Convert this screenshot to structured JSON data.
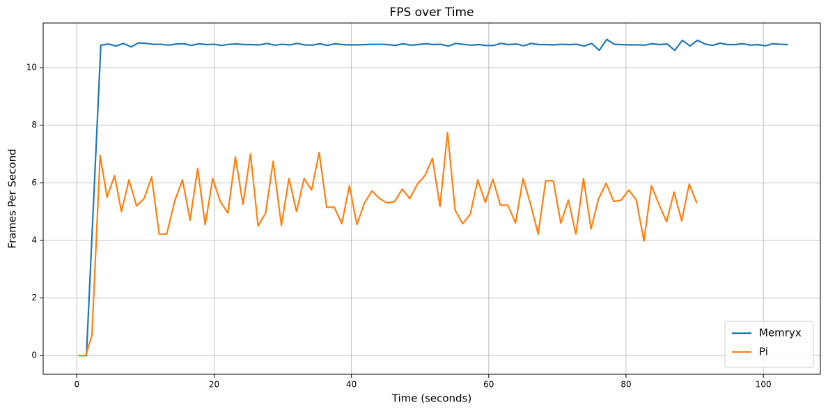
{
  "chart_data": {
    "type": "line",
    "title": "FPS over Time",
    "x_label": "Time (seconds)",
    "y_label": "Frames Per Second",
    "xlim": [
      -4.9,
      108.3
    ],
    "ylim": [
      -0.65,
      11.55
    ],
    "xticks": [
      0,
      20,
      40,
      60,
      80,
      100
    ],
    "yticks": [
      0,
      2,
      4,
      6,
      8,
      10
    ],
    "grid": true,
    "legend": "lower right",
    "series": [
      {
        "name": "Memryx",
        "color": "#1f77b4",
        "x": [
          0.4,
          1.4,
          3.5,
          4.6,
          5.7,
          6.8,
          7.9,
          9.0,
          10.1,
          11.2,
          12.3,
          13.4,
          14.5,
          15.6,
          16.7,
          17.8,
          18.9,
          20.0,
          21.1,
          22.2,
          23.3,
          24.4,
          25.5,
          26.6,
          27.7,
          28.8,
          29.9,
          31.0,
          32.1,
          33.2,
          34.3,
          35.4,
          36.5,
          37.6,
          38.7,
          39.8,
          40.9,
          42.0,
          43.1,
          44.2,
          45.3,
          46.4,
          47.5,
          48.6,
          49.7,
          50.8,
          51.9,
          53.0,
          54.1,
          55.2,
          56.3,
          57.4,
          58.5,
          59.6,
          60.7,
          61.8,
          62.9,
          64.0,
          65.1,
          66.2,
          67.3,
          68.4,
          69.5,
          70.6,
          71.7,
          72.8,
          73.9,
          75.0,
          76.1,
          77.2,
          78.3,
          79.4,
          80.5,
          81.6,
          82.7,
          83.8,
          84.9,
          86.0,
          87.1,
          88.2,
          89.3,
          90.4,
          91.5,
          92.6,
          93.7,
          94.8,
          95.9,
          97.0,
          98.1,
          99.2,
          100.3,
          101.4,
          102.5,
          103.6
        ],
        "values": [
          0,
          0,
          10.78,
          10.82,
          10.75,
          10.84,
          10.72,
          10.86,
          10.84,
          10.81,
          10.81,
          10.78,
          10.82,
          10.83,
          10.77,
          10.83,
          10.8,
          10.81,
          10.77,
          10.81,
          10.82,
          10.8,
          10.8,
          10.79,
          10.84,
          10.78,
          10.81,
          10.79,
          10.84,
          10.79,
          10.78,
          10.83,
          10.77,
          10.83,
          10.8,
          10.79,
          10.79,
          10.8,
          10.81,
          10.81,
          10.8,
          10.77,
          10.83,
          10.78,
          10.8,
          10.83,
          10.8,
          10.81,
          10.75,
          10.84,
          10.81,
          10.78,
          10.8,
          10.77,
          10.77,
          10.84,
          10.8,
          10.82,
          10.76,
          10.84,
          10.8,
          10.8,
          10.79,
          10.81,
          10.8,
          10.81,
          10.75,
          10.84,
          10.6,
          10.98,
          10.81,
          10.8,
          10.79,
          10.79,
          10.78,
          10.83,
          10.8,
          10.82,
          10.6,
          10.95,
          10.75,
          10.95,
          10.82,
          10.77,
          10.85,
          10.8,
          10.8,
          10.83,
          10.78,
          10.8,
          10.76,
          10.83,
          10.81,
          10.8
        ]
      },
      {
        "name": "Pi",
        "color": "#ff7f0e",
        "x": [
          0.2,
          1.3,
          2.2,
          3.4,
          4.4,
          5.5,
          6.5,
          7.6,
          8.7,
          9.8,
          10.9,
          12.0,
          13.1,
          14.3,
          15.4,
          16.5,
          17.6,
          18.7,
          19.8,
          20.9,
          22.0,
          23.1,
          24.2,
          25.3,
          26.4,
          27.5,
          28.6,
          29.8,
          30.9,
          32.0,
          33.1,
          34.2,
          35.3,
          36.4,
          37.5,
          38.6,
          39.7,
          40.8,
          41.9,
          43.0,
          44.1,
          45.2,
          46.3,
          47.4,
          48.5,
          49.6,
          50.7,
          51.8,
          52.9,
          54.0,
          55.1,
          56.2,
          57.3,
          58.4,
          59.5,
          60.6,
          61.7,
          62.8,
          63.9,
          65.0,
          66.1,
          67.2,
          68.3,
          69.4,
          70.5,
          71.6,
          72.7,
          73.8,
          74.9,
          76.0,
          77.1,
          78.2,
          79.3,
          80.4,
          81.5,
          82.6,
          83.7,
          84.8,
          85.9,
          87.0,
          88.1,
          89.2,
          90.3
        ],
        "values": [
          0,
          0,
          0.7,
          6.95,
          5.5,
          6.25,
          5.0,
          6.1,
          5.2,
          5.45,
          6.2,
          4.22,
          4.22,
          5.4,
          6.1,
          4.7,
          6.5,
          4.55,
          6.15,
          5.35,
          4.95,
          6.9,
          5.25,
          7.0,
          4.5,
          4.95,
          6.75,
          4.52,
          6.15,
          5.0,
          6.15,
          5.75,
          7.05,
          5.15,
          5.15,
          4.58,
          5.9,
          4.55,
          5.3,
          5.72,
          5.45,
          5.3,
          5.35,
          5.78,
          5.45,
          5.95,
          6.25,
          6.85,
          5.18,
          7.75,
          5.05,
          4.58,
          4.9,
          6.1,
          5.32,
          6.12,
          5.22,
          5.22,
          4.6,
          6.15,
          5.25,
          4.22,
          6.07,
          6.07,
          4.6,
          5.4,
          4.22,
          6.15,
          4.4,
          5.45,
          5.98,
          5.35,
          5.4,
          5.75,
          5.4,
          3.98,
          5.9,
          5.25,
          4.65,
          5.68,
          4.68,
          5.95,
          5.3
        ]
      }
    ]
  }
}
